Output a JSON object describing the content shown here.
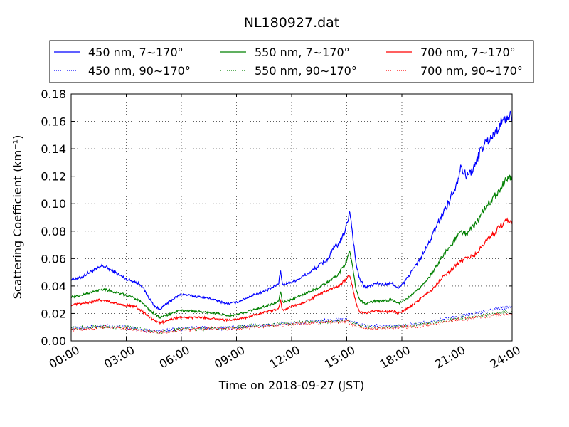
{
  "chart_data": {
    "type": "line",
    "title": "NL180927.dat",
    "xlabel": "Time on 2018-09-27 (JST)",
    "ylabel": "Scattering Coefficient (km⁻¹)",
    "xlim": [
      0,
      24
    ],
    "ylim": [
      0,
      0.18
    ],
    "grid": true,
    "legend_position": "top",
    "x_ticks": [
      {
        "value": 0,
        "label": "00:00"
      },
      {
        "value": 3,
        "label": "03:00"
      },
      {
        "value": 6,
        "label": "06:00"
      },
      {
        "value": 9,
        "label": "09:00"
      },
      {
        "value": 12,
        "label": "12:00"
      },
      {
        "value": 15,
        "label": "15:00"
      },
      {
        "value": 18,
        "label": "18:00"
      },
      {
        "value": 21,
        "label": "21:00"
      },
      {
        "value": 24,
        "label": "24:00"
      }
    ],
    "y_ticks": [
      {
        "value": 0.0,
        "label": "0.00"
      },
      {
        "value": 0.02,
        "label": "0.02"
      },
      {
        "value": 0.04,
        "label": "0.04"
      },
      {
        "value": 0.06,
        "label": "0.06"
      },
      {
        "value": 0.08,
        "label": "0.08"
      },
      {
        "value": 0.1,
        "label": "0.10"
      },
      {
        "value": 0.12,
        "label": "0.12"
      },
      {
        "value": 0.14,
        "label": "0.14"
      },
      {
        "value": 0.16,
        "label": "0.16"
      },
      {
        "value": 0.18,
        "label": "0.18"
      }
    ],
    "series": [
      {
        "name": "450 nm, 7∼170°",
        "color": "#0000ff",
        "style": "solid",
        "points": [
          [
            0,
            0.045
          ],
          [
            0.5,
            0.046
          ],
          [
            1,
            0.05
          ],
          [
            1.5,
            0.053
          ],
          [
            1.7,
            0.055
          ],
          [
            2,
            0.053
          ],
          [
            2.5,
            0.049
          ],
          [
            3,
            0.045
          ],
          [
            3.5,
            0.043
          ],
          [
            3.8,
            0.041
          ],
          [
            4.2,
            0.032
          ],
          [
            4.5,
            0.026
          ],
          [
            4.8,
            0.023
          ],
          [
            5.2,
            0.027
          ],
          [
            5.6,
            0.031
          ],
          [
            6,
            0.034
          ],
          [
            6.5,
            0.033
          ],
          [
            7,
            0.032
          ],
          [
            7.5,
            0.031
          ],
          [
            8,
            0.029
          ],
          [
            8.5,
            0.027
          ],
          [
            9,
            0.028
          ],
          [
            9.5,
            0.031
          ],
          [
            10,
            0.034
          ],
          [
            10.5,
            0.036
          ],
          [
            11,
            0.039
          ],
          [
            11.3,
            0.042
          ],
          [
            11.4,
            0.052
          ],
          [
            11.5,
            0.041
          ],
          [
            12,
            0.043
          ],
          [
            12.5,
            0.046
          ],
          [
            13,
            0.05
          ],
          [
            13.5,
            0.055
          ],
          [
            14,
            0.06
          ],
          [
            14.3,
            0.068
          ],
          [
            14.6,
            0.071
          ],
          [
            14.9,
            0.08
          ],
          [
            15.1,
            0.09
          ],
          [
            15.15,
            0.097
          ],
          [
            15.3,
            0.08
          ],
          [
            15.5,
            0.057
          ],
          [
            15.7,
            0.045
          ],
          [
            16,
            0.039
          ],
          [
            16.3,
            0.04
          ],
          [
            16.6,
            0.042
          ],
          [
            17,
            0.041
          ],
          [
            17.5,
            0.042
          ],
          [
            17.8,
            0.038
          ],
          [
            18.1,
            0.042
          ],
          [
            18.5,
            0.05
          ],
          [
            19,
            0.06
          ],
          [
            19.5,
            0.072
          ],
          [
            20,
            0.087
          ],
          [
            20.5,
            0.1
          ],
          [
            21,
            0.115
          ],
          [
            21.2,
            0.128
          ],
          [
            21.5,
            0.12
          ],
          [
            21.8,
            0.124
          ],
          [
            22,
            0.128
          ],
          [
            22.3,
            0.14
          ],
          [
            22.6,
            0.145
          ],
          [
            23,
            0.15
          ],
          [
            23.3,
            0.157
          ],
          [
            23.6,
            0.162
          ],
          [
            24,
            0.164
          ]
        ]
      },
      {
        "name": "450 nm, 90∼170°",
        "color": "#0000ff",
        "style": "dotted",
        "points": [
          [
            0,
            0.009
          ],
          [
            1,
            0.01
          ],
          [
            2,
            0.011
          ],
          [
            3,
            0.01
          ],
          [
            4,
            0.008
          ],
          [
            4.8,
            0.007
          ],
          [
            5.5,
            0.008
          ],
          [
            6,
            0.009
          ],
          [
            7,
            0.01
          ],
          [
            8,
            0.009
          ],
          [
            9,
            0.01
          ],
          [
            10,
            0.011
          ],
          [
            11,
            0.012
          ],
          [
            12,
            0.013
          ],
          [
            13,
            0.014
          ],
          [
            14,
            0.015
          ],
          [
            15,
            0.016
          ],
          [
            15.5,
            0.013
          ],
          [
            16,
            0.011
          ],
          [
            17,
            0.011
          ],
          [
            18,
            0.011
          ],
          [
            19,
            0.013
          ],
          [
            20,
            0.015
          ],
          [
            21,
            0.018
          ],
          [
            22,
            0.02
          ],
          [
            23,
            0.023
          ],
          [
            24,
            0.025
          ]
        ]
      },
      {
        "name": "550 nm, 7∼170°",
        "color": "#008000",
        "style": "solid",
        "points": [
          [
            0,
            0.032
          ],
          [
            0.5,
            0.033
          ],
          [
            1,
            0.035
          ],
          [
            1.5,
            0.037
          ],
          [
            1.8,
            0.038
          ],
          [
            2.2,
            0.036
          ],
          [
            2.8,
            0.034
          ],
          [
            3.3,
            0.032
          ],
          [
            3.8,
            0.029
          ],
          [
            4.3,
            0.022
          ],
          [
            4.8,
            0.017
          ],
          [
            5.3,
            0.019
          ],
          [
            5.8,
            0.022
          ],
          [
            6.5,
            0.022
          ],
          [
            7.2,
            0.021
          ],
          [
            8,
            0.02
          ],
          [
            8.5,
            0.018
          ],
          [
            9,
            0.019
          ],
          [
            9.5,
            0.021
          ],
          [
            10,
            0.023
          ],
          [
            10.5,
            0.025
          ],
          [
            11,
            0.027
          ],
          [
            11.3,
            0.029
          ],
          [
            11.4,
            0.036
          ],
          [
            11.5,
            0.028
          ],
          [
            12,
            0.03
          ],
          [
            12.5,
            0.033
          ],
          [
            13,
            0.036
          ],
          [
            13.5,
            0.039
          ],
          [
            14,
            0.043
          ],
          [
            14.5,
            0.048
          ],
          [
            14.9,
            0.056
          ],
          [
            15.15,
            0.065
          ],
          [
            15.3,
            0.055
          ],
          [
            15.5,
            0.038
          ],
          [
            15.7,
            0.03
          ],
          [
            16,
            0.027
          ],
          [
            16.5,
            0.029
          ],
          [
            17,
            0.029
          ],
          [
            17.5,
            0.03
          ],
          [
            17.8,
            0.027
          ],
          [
            18.2,
            0.03
          ],
          [
            18.7,
            0.035
          ],
          [
            19.2,
            0.042
          ],
          [
            19.7,
            0.05
          ],
          [
            20.2,
            0.062
          ],
          [
            20.7,
            0.07
          ],
          [
            21.2,
            0.08
          ],
          [
            21.5,
            0.078
          ],
          [
            22,
            0.085
          ],
          [
            22.3,
            0.092
          ],
          [
            22.7,
            0.1
          ],
          [
            23,
            0.105
          ],
          [
            23.4,
            0.112
          ],
          [
            23.7,
            0.118
          ],
          [
            24,
            0.119
          ]
        ]
      },
      {
        "name": "550 nm, 90∼170°",
        "color": "#008000",
        "style": "dotted",
        "points": [
          [
            0,
            0.009
          ],
          [
            1,
            0.01
          ],
          [
            2,
            0.01
          ],
          [
            3,
            0.01
          ],
          [
            4,
            0.008
          ],
          [
            4.8,
            0.006
          ],
          [
            5.5,
            0.007
          ],
          [
            6,
            0.009
          ],
          [
            7,
            0.009
          ],
          [
            8,
            0.009
          ],
          [
            9,
            0.01
          ],
          [
            10,
            0.011
          ],
          [
            11,
            0.012
          ],
          [
            12,
            0.013
          ],
          [
            13,
            0.014
          ],
          [
            14,
            0.014
          ],
          [
            15,
            0.015
          ],
          [
            15.5,
            0.012
          ],
          [
            16,
            0.01
          ],
          [
            17,
            0.01
          ],
          [
            18,
            0.011
          ],
          [
            19,
            0.012
          ],
          [
            20,
            0.014
          ],
          [
            21,
            0.016
          ],
          [
            22,
            0.018
          ],
          [
            23,
            0.02
          ],
          [
            24,
            0.022
          ]
        ]
      },
      {
        "name": "700 nm, 7∼170°",
        "color": "#ff0000",
        "style": "solid",
        "points": [
          [
            0,
            0.026
          ],
          [
            0.5,
            0.027
          ],
          [
            1,
            0.028
          ],
          [
            1.5,
            0.03
          ],
          [
            2,
            0.029
          ],
          [
            2.5,
            0.027
          ],
          [
            3,
            0.026
          ],
          [
            3.5,
            0.025
          ],
          [
            4,
            0.02
          ],
          [
            4.5,
            0.015
          ],
          [
            4.8,
            0.013
          ],
          [
            5.3,
            0.015
          ],
          [
            5.8,
            0.017
          ],
          [
            6.5,
            0.017
          ],
          [
            7.2,
            0.017
          ],
          [
            8,
            0.016
          ],
          [
            8.5,
            0.015
          ],
          [
            9,
            0.016
          ],
          [
            9.5,
            0.017
          ],
          [
            10,
            0.019
          ],
          [
            10.5,
            0.021
          ],
          [
            11,
            0.022
          ],
          [
            11.3,
            0.024
          ],
          [
            11.4,
            0.03
          ],
          [
            11.5,
            0.022
          ],
          [
            12,
            0.025
          ],
          [
            12.5,
            0.027
          ],
          [
            13,
            0.03
          ],
          [
            13.5,
            0.034
          ],
          [
            14,
            0.037
          ],
          [
            14.5,
            0.039
          ],
          [
            14.9,
            0.044
          ],
          [
            15.15,
            0.048
          ],
          [
            15.3,
            0.04
          ],
          [
            15.5,
            0.028
          ],
          [
            15.7,
            0.021
          ],
          [
            16,
            0.02
          ],
          [
            16.5,
            0.022
          ],
          [
            17,
            0.021
          ],
          [
            17.5,
            0.022
          ],
          [
            17.8,
            0.02
          ],
          [
            18.2,
            0.023
          ],
          [
            18.7,
            0.027
          ],
          [
            19.2,
            0.033
          ],
          [
            19.7,
            0.038
          ],
          [
            20.2,
            0.046
          ],
          [
            20.7,
            0.052
          ],
          [
            21.2,
            0.058
          ],
          [
            21.5,
            0.06
          ],
          [
            22,
            0.063
          ],
          [
            22.3,
            0.068
          ],
          [
            22.7,
            0.074
          ],
          [
            23,
            0.078
          ],
          [
            23.4,
            0.084
          ],
          [
            23.7,
            0.088
          ],
          [
            24,
            0.087
          ]
        ]
      },
      {
        "name": "700 nm, 90∼170°",
        "color": "#ff0000",
        "style": "dotted",
        "points": [
          [
            0,
            0.008
          ],
          [
            1,
            0.009
          ],
          [
            2,
            0.01
          ],
          [
            3,
            0.009
          ],
          [
            4,
            0.007
          ],
          [
            4.8,
            0.006
          ],
          [
            5.5,
            0.007
          ],
          [
            6,
            0.008
          ],
          [
            7,
            0.009
          ],
          [
            8,
            0.009
          ],
          [
            9,
            0.009
          ],
          [
            10,
            0.01
          ],
          [
            11,
            0.011
          ],
          [
            12,
            0.012
          ],
          [
            13,
            0.013
          ],
          [
            14,
            0.014
          ],
          [
            15,
            0.014
          ],
          [
            15.5,
            0.011
          ],
          [
            16,
            0.009
          ],
          [
            17,
            0.009
          ],
          [
            18,
            0.01
          ],
          [
            19,
            0.011
          ],
          [
            20,
            0.013
          ],
          [
            21,
            0.015
          ],
          [
            22,
            0.017
          ],
          [
            23,
            0.019
          ],
          [
            24,
            0.02
          ]
        ]
      }
    ]
  }
}
